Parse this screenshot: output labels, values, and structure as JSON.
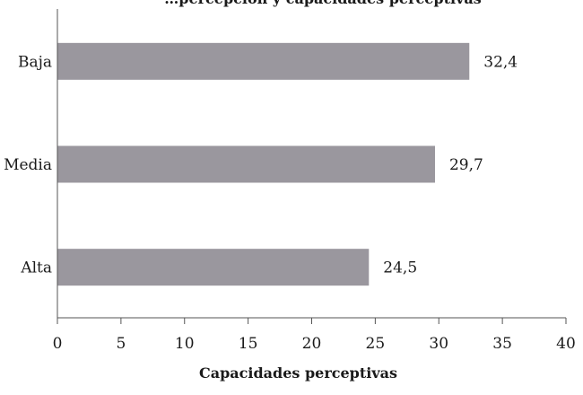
{
  "chart_data": {
    "type": "bar",
    "orientation": "horizontal",
    "title": "",
    "xlabel": "Capacidades perceptivas",
    "ylabel": "",
    "categories": [
      "Baja",
      "Media",
      "Alta"
    ],
    "values": [
      32.4,
      29.7,
      24.5
    ],
    "data_labels": [
      "32,4",
      "29,7",
      "24,5"
    ],
    "xlim": [
      0,
      40
    ],
    "x_ticks": [
      0,
      5,
      10,
      15,
      20,
      25,
      30,
      35,
      40
    ],
    "x_tick_labels": [
      "0",
      "5",
      "10",
      "15",
      "20",
      "25",
      "30",
      "35",
      "40"
    ],
    "grid": false,
    "bar_color": "#9a979e",
    "partial_title_text": "…percepción y capacidades perceptivas"
  }
}
